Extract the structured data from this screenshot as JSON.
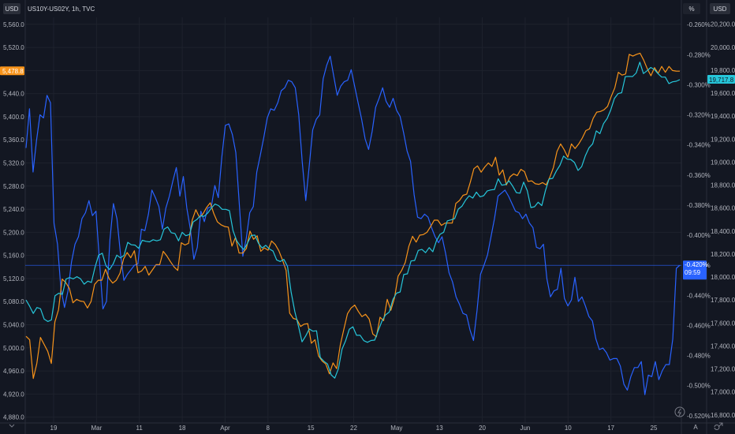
{
  "chart_data": {
    "type": "line",
    "title": "US10Y-US02Y, 1h, TVC",
    "left_axis": {
      "unit_button": "USD",
      "ticks": [
        "5,560.0",
        "5,520.0",
        "5,480.0",
        "5,440.0",
        "5,400.0",
        "5,360.0",
        "5,320.0",
        "5,280.0",
        "5,240.0",
        "5,200.0",
        "5,160.0",
        "5,120.0",
        "5,080.0",
        "5,040.0",
        "5,000.0",
        "4,960.0",
        "4,920.0",
        "4,880.0"
      ],
      "ylim": [
        4870,
        5572
      ]
    },
    "mid_axis": {
      "unit_button": "%",
      "ticks": [
        "-0.520%",
        "-0.500%",
        "-0.480%",
        "-0.460%",
        "-0.440%",
        "-0.420%",
        "-0.400%",
        "-0.380%",
        "-0.360%",
        "-0.340%",
        "-0.320%",
        "-0.300%",
        "-0.280%",
        "-0.260%"
      ],
      "ylim": [
        -0.5248,
        -0.2552
      ]
    },
    "right_axis": {
      "unit_button": "USD",
      "ticks": [
        "20,200.0",
        "20,000.0",
        "19,800.0",
        "19,600.0",
        "19,400.0",
        "19,200.0",
        "19,000.0",
        "18,800.0",
        "18,600.0",
        "18,400.0",
        "18,200.0",
        "18,000.0",
        "17,800.0",
        "17,600.0",
        "17,400.0",
        "17,200.0",
        "17,000.0",
        "16,800.0"
      ],
      "ylim": [
        16730,
        20260
      ]
    },
    "x_ticks": [
      "19",
      "Mar",
      "11",
      "18",
      "Apr",
      "8",
      "15",
      "22",
      "May",
      "13",
      "20",
      "Jun",
      "10",
      "17",
      "25"
    ],
    "x_corner_label": "A",
    "series": [
      {
        "axis": "mid",
        "color": "#2962ff",
        "last_label": "-0.420%",
        "countdown": "09:59",
        "values": [
          -0.342,
          -0.316,
          -0.358,
          -0.337,
          -0.32,
          -0.322,
          -0.307,
          -0.312,
          -0.392,
          -0.406,
          -0.436,
          -0.448,
          -0.437,
          -0.418,
          -0.406,
          -0.401,
          -0.389,
          -0.385,
          -0.377,
          -0.387,
          -0.384,
          -0.417,
          -0.449,
          -0.444,
          -0.403,
          -0.379,
          -0.389,
          -0.412,
          -0.43,
          -0.426,
          -0.423,
          -0.42,
          -0.419,
          -0.396,
          -0.397,
          -0.386,
          -0.37,
          -0.375,
          -0.381,
          -0.396,
          -0.382,
          -0.374,
          -0.364,
          -0.355,
          -0.374,
          -0.361,
          -0.382,
          -0.396,
          -0.416,
          -0.408,
          -0.384,
          -0.391,
          -0.382,
          -0.381,
          -0.367,
          -0.375,
          -0.348,
          -0.327,
          -0.326,
          -0.333,
          -0.345,
          -0.379,
          -0.414,
          -0.402,
          -0.385,
          -0.381,
          -0.358,
          -0.347,
          -0.335,
          -0.322,
          -0.316,
          -0.317,
          -0.312,
          -0.304,
          -0.302,
          -0.297,
          -0.298,
          -0.302,
          -0.32,
          -0.351,
          -0.377,
          -0.354,
          -0.33,
          -0.323,
          -0.32,
          -0.296,
          -0.287,
          -0.281,
          -0.294,
          -0.307,
          -0.301,
          -0.298,
          -0.297,
          -0.29,
          -0.301,
          -0.312,
          -0.323,
          -0.336,
          -0.343,
          -0.331,
          -0.315,
          -0.309,
          -0.302,
          -0.311,
          -0.315,
          -0.309,
          -0.317,
          -0.321,
          -0.332,
          -0.344,
          -0.351,
          -0.373,
          -0.388,
          -0.389,
          -0.386,
          -0.388,
          -0.395,
          -0.401,
          -0.405,
          -0.401,
          -0.412,
          -0.425,
          -0.431,
          -0.441,
          -0.446,
          -0.452,
          -0.453,
          -0.463,
          -0.47,
          -0.45,
          -0.426,
          -0.42,
          -0.413,
          -0.401,
          -0.389,
          -0.374,
          -0.372,
          -0.37,
          -0.374,
          -0.379,
          -0.384,
          -0.385,
          -0.389,
          -0.386,
          -0.392,
          -0.395,
          -0.408,
          -0.409,
          -0.406,
          -0.429,
          -0.441,
          -0.437,
          -0.436,
          -0.422,
          -0.442,
          -0.447,
          -0.443,
          -0.428,
          -0.444,
          -0.441,
          -0.447,
          -0.454,
          -0.457,
          -0.469,
          -0.476,
          -0.475,
          -0.478,
          -0.483,
          -0.482,
          -0.482,
          -0.487,
          -0.499,
          -0.503,
          -0.494,
          -0.488,
          -0.488,
          -0.484,
          -0.506,
          -0.493,
          -0.494,
          -0.484,
          -0.496,
          -0.49,
          -0.486,
          -0.486,
          -0.469,
          -0.422,
          -0.42
        ]
      },
      {
        "axis": "left",
        "color": "#f7931a",
        "last_label": "5,478.8",
        "values": [
          5020,
          5014,
          4947,
          4973,
          5018,
          5006,
          4994,
          4973,
          5045,
          5066,
          5119,
          5113,
          5103,
          5078,
          5084,
          5081,
          5080,
          5069,
          5080,
          5110,
          5117,
          5117,
          5136,
          5120,
          5112,
          5117,
          5129,
          5154,
          5165,
          5156,
          5168,
          5130,
          5133,
          5141,
          5126,
          5135,
          5144,
          5144,
          5167,
          5159,
          5149,
          5140,
          5134,
          5182,
          5178,
          5181,
          5221,
          5239,
          5226,
          5232,
          5243,
          5251,
          5232,
          5218,
          5213,
          5210,
          5209,
          5176,
          5191,
          5164,
          5164,
          5172,
          5202,
          5188,
          5194,
          5167,
          5173,
          5169,
          5185,
          5179,
          5168,
          5152,
          5134,
          5060,
          5051,
          5049,
          5037,
          5041,
          5042,
          5008,
          5014,
          4986,
          4977,
          4972,
          4955,
          4974,
          4964,
          5005,
          5032,
          5059,
          5069,
          5074,
          5063,
          5054,
          5058,
          5050,
          5024,
          5019,
          5053,
          5047,
          5084,
          5065,
          5086,
          5124,
          5134,
          5148,
          5176,
          5193,
          5183,
          5195,
          5196,
          5200,
          5210,
          5221,
          5221,
          5212,
          5216,
          5216,
          5216,
          5250,
          5255,
          5264,
          5266,
          5287,
          5310,
          5315,
          5304,
          5313,
          5320,
          5314,
          5330,
          5299,
          5308,
          5282,
          5296,
          5301,
          5298,
          5309,
          5305,
          5288,
          5289,
          5284,
          5283,
          5286,
          5282,
          5295,
          5312,
          5340,
          5353,
          5343,
          5330,
          5353,
          5345,
          5353,
          5363,
          5376,
          5379,
          5397,
          5408,
          5409,
          5412,
          5418,
          5435,
          5450,
          5477,
          5472,
          5474,
          5508,
          5505,
          5508,
          5510,
          5498,
          5483,
          5471,
          5485,
          5475,
          5487,
          5477,
          5487,
          5480,
          5479,
          5478.8
        ]
      },
      {
        "axis": "right",
        "color": "#26c6da",
        "last_label": "19,717.8",
        "values": [
          17800,
          17746,
          17683,
          17735,
          17724,
          17634,
          17613,
          17627,
          17838,
          17859,
          17849,
          17982,
          17996,
          17984,
          18003,
          17985,
          17938,
          17964,
          17953,
          18086,
          18191,
          18207,
          18098,
          18065,
          18114,
          18191,
          18167,
          18189,
          18302,
          18281,
          18278,
          18250,
          18320,
          18311,
          18306,
          18325,
          18315,
          18325,
          18417,
          18436,
          18386,
          18379,
          18315,
          18389,
          18360,
          18370,
          18480,
          18500,
          18533,
          18528,
          18556,
          18599,
          18635,
          18622,
          18589,
          18589,
          18578,
          18404,
          18317,
          18270,
          18239,
          18296,
          18361,
          18365,
          18293,
          18253,
          18276,
          18244,
          18226,
          18149,
          18135,
          18154,
          18092,
          17867,
          17701,
          17574,
          17436,
          17487,
          17548,
          17529,
          17532,
          17300,
          17267,
          17244,
          17149,
          17120,
          17202,
          17372,
          17447,
          17545,
          17567,
          17493,
          17493,
          17446,
          17432,
          17448,
          17451,
          17535,
          17616,
          17671,
          17695,
          17805,
          17860,
          17870,
          18022,
          18028,
          18140,
          18144,
          18232,
          18240,
          18212,
          18256,
          18220,
          18315,
          18372,
          18390,
          18489,
          18498,
          18508,
          18591,
          18616,
          18668,
          18707,
          18687,
          18739,
          18698,
          18708,
          18750,
          18758,
          18762,
          18855,
          18799,
          18805,
          18837,
          18791,
          18735,
          18730,
          18826,
          18752,
          18605,
          18612,
          18651,
          18622,
          18751,
          18853,
          18859,
          18922,
          18972,
          19053,
          19026,
          19023,
          18997,
          18928,
          18961,
          19057,
          19125,
          19159,
          19272,
          19248,
          19335,
          19380,
          19456,
          19555,
          19596,
          19604,
          19744,
          19746,
          19745,
          19776,
          19870,
          19771,
          19795,
          19824,
          19806,
          19770,
          19740,
          19740,
          19684,
          19699,
          19704,
          19717.8
        ]
      }
    ]
  }
}
